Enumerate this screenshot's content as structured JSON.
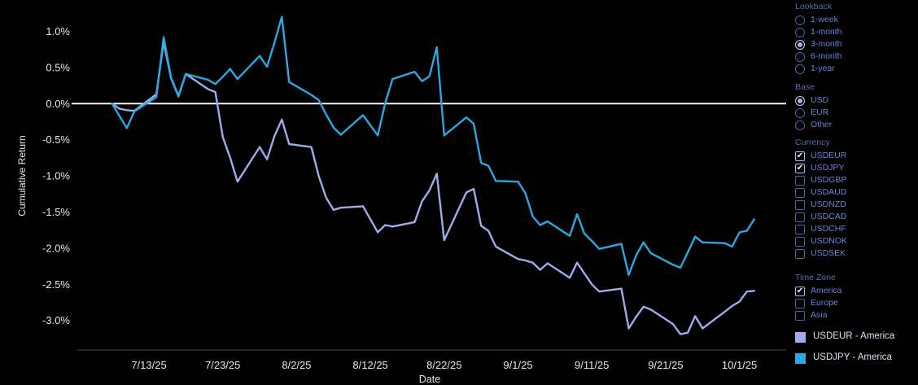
{
  "chart_data": {
    "type": "line",
    "title": "",
    "xlabel": "Date",
    "ylabel": "Cumulative Return",
    "grid": "off",
    "legend_position": "right-bottom",
    "ylim": [
      -3.45,
      1.45
    ],
    "zero_line_color": "#ffffff",
    "axis_line_color": "#4a4a4a",
    "tick_text_color": "#e6e6e6",
    "x_ticks": [
      {
        "label": "7/13/25",
        "d": 5
      },
      {
        "label": "7/23/25",
        "d": 15
      },
      {
        "label": "8/2/25",
        "d": 25
      },
      {
        "label": "8/12/25",
        "d": 35
      },
      {
        "label": "8/22/25",
        "d": 45
      },
      {
        "label": "9/1/25",
        "d": 55
      },
      {
        "label": "9/11/25",
        "d": 65
      },
      {
        "label": "9/21/25",
        "d": 75
      },
      {
        "label": "10/1/25",
        "d": 85
      }
    ],
    "y_ticks": [
      {
        "label": "1.0%",
        "v": 1.0
      },
      {
        "label": "0.5%",
        "v": 0.5
      },
      {
        "label": "0.0%",
        "v": 0.0
      },
      {
        "label": "-0.5%",
        "v": -0.5
      },
      {
        "label": "-1.0%",
        "v": -1.0
      },
      {
        "label": "-1.5%",
        "v": -1.5
      },
      {
        "label": "-2.0%",
        "v": -2.0
      },
      {
        "label": "-2.5%",
        "v": -2.5
      },
      {
        "label": "-3.0%",
        "v": -3.0
      }
    ],
    "x_day_offsets": [
      0,
      1,
      2,
      3,
      6,
      7,
      8,
      9,
      10,
      13,
      14,
      15,
      16,
      17,
      20,
      21,
      22,
      23,
      24,
      27,
      28,
      29,
      30,
      31,
      34,
      35,
      36,
      37,
      38,
      41,
      42,
      43,
      44,
      45,
      48,
      49,
      50,
      51,
      52,
      55,
      56,
      57,
      58,
      59,
      62,
      63,
      64,
      65,
      66,
      69,
      70,
      71,
      72,
      73,
      76,
      77,
      78,
      79,
      80,
      83,
      84,
      85,
      86,
      87
    ],
    "dates": [
      "7/8/25",
      "7/9/25",
      "7/10/25",
      "7/11/25",
      "7/14/25",
      "7/15/25",
      "7/16/25",
      "7/17/25",
      "7/18/25",
      "7/21/25",
      "7/22/25",
      "7/23/25",
      "7/24/25",
      "7/25/25",
      "7/28/25",
      "7/29/25",
      "7/30/25",
      "7/31/25",
      "8/1/25",
      "8/4/25",
      "8/5/25",
      "8/6/25",
      "8/7/25",
      "8/8/25",
      "8/11/25",
      "8/12/25",
      "8/13/25",
      "8/14/25",
      "8/15/25",
      "8/18/25",
      "8/19/25",
      "8/20/25",
      "8/21/25",
      "8/22/25",
      "8/25/25",
      "8/26/25",
      "8/27/25",
      "8/28/25",
      "8/29/25",
      "9/1/25",
      "9/2/25",
      "9/3/25",
      "9/4/25",
      "9/5/25",
      "9/8/25",
      "9/9/25",
      "9/10/25",
      "9/11/25",
      "9/12/25",
      "9/15/25",
      "9/16/25",
      "9/17/25",
      "9/18/25",
      "9/19/25",
      "9/22/25",
      "9/23/25",
      "9/24/25",
      "9/25/25",
      "9/26/25",
      "9/29/25",
      "9/30/25",
      "10/1/25",
      "10/2/25",
      "10/3/25"
    ],
    "series": [
      {
        "name": "USDEUR - America",
        "color": "#9fabec",
        "values": [
          0.0,
          -0.07,
          -0.09,
          -0.1,
          0.13,
          0.85,
          0.35,
          0.1,
          0.41,
          0.2,
          0.16,
          -0.46,
          -0.75,
          -1.08,
          -0.6,
          -0.77,
          -0.45,
          -0.22,
          -0.56,
          -0.6,
          -1.0,
          -1.3,
          -1.47,
          -1.44,
          -1.42,
          -1.6,
          -1.78,
          -1.68,
          -1.7,
          -1.64,
          -1.35,
          -1.2,
          -0.97,
          -1.89,
          -1.23,
          -1.18,
          -1.69,
          -1.76,
          -1.98,
          -2.15,
          -2.17,
          -2.2,
          -2.3,
          -2.21,
          -2.41,
          -2.2,
          -2.35,
          -2.5,
          -2.6,
          -2.56,
          -3.11,
          -2.95,
          -2.81,
          -2.85,
          -3.05,
          -3.19,
          -3.17,
          -2.94,
          -3.11,
          -2.88,
          -2.8,
          -2.74,
          -2.6,
          -2.59
        ]
      },
      {
        "name": "USDJPY - America",
        "color": "#29a9e2",
        "values": [
          0.0,
          -0.17,
          -0.34,
          -0.11,
          0.09,
          0.92,
          0.36,
          0.11,
          0.41,
          0.33,
          0.27,
          0.37,
          0.48,
          0.34,
          0.66,
          0.51,
          0.84,
          1.2,
          0.3,
          0.12,
          0.05,
          -0.15,
          -0.33,
          -0.43,
          -0.16,
          -0.3,
          -0.44,
          0.0,
          0.34,
          0.44,
          0.31,
          0.38,
          0.78,
          -0.44,
          -0.19,
          -0.28,
          -0.82,
          -0.86,
          -1.07,
          -1.08,
          -1.24,
          -1.56,
          -1.68,
          -1.63,
          -1.83,
          -1.53,
          -1.8,
          -1.9,
          -2.01,
          -1.94,
          -2.37,
          -2.1,
          -1.92,
          -2.07,
          -2.23,
          -2.27,
          -2.06,
          -1.84,
          -1.92,
          -1.93,
          -1.98,
          -1.78,
          -1.76,
          -1.6
        ]
      }
    ]
  },
  "sidebar": {
    "lookback": {
      "label": "Lookback",
      "type": "radio",
      "options": [
        {
          "label": "1-week",
          "selected": false
        },
        {
          "label": "1-month",
          "selected": false
        },
        {
          "label": "3-month",
          "selected": true
        },
        {
          "label": "6-month",
          "selected": false
        },
        {
          "label": "1-year",
          "selected": false
        }
      ]
    },
    "base": {
      "label": "Base",
      "type": "radio",
      "options": [
        {
          "label": "USD",
          "selected": true
        },
        {
          "label": "EUR",
          "selected": false
        },
        {
          "label": "Other",
          "selected": false
        }
      ]
    },
    "currency": {
      "label": "Currency",
      "type": "checkbox",
      "options": [
        {
          "label": "USDEUR",
          "checked": true
        },
        {
          "label": "USDJPY",
          "checked": true
        },
        {
          "label": "USDGBP",
          "checked": false
        },
        {
          "label": "USDAUD",
          "checked": false
        },
        {
          "label": "USDNZD",
          "checked": false
        },
        {
          "label": "USDCAD",
          "checked": false
        },
        {
          "label": "USDCHF",
          "checked": false
        },
        {
          "label": "USDNOK",
          "checked": false
        },
        {
          "label": "USDSEK",
          "checked": false
        }
      ]
    },
    "timezone": {
      "label": "Time Zone",
      "type": "checkbox",
      "options": [
        {
          "label": "America",
          "checked": true
        },
        {
          "label": "Europe",
          "checked": false
        },
        {
          "label": "Asia",
          "checked": false
        }
      ]
    },
    "legend": [
      {
        "label": "USDEUR - America",
        "color": "#9fabec"
      },
      {
        "label": "USDJPY - America",
        "color": "#29a9e2"
      }
    ],
    "icons": {
      "radio_selected": "radio-selected-icon",
      "radio_unselected": "radio-unselected-icon",
      "checkbox_checked_glyph": "✔"
    }
  }
}
